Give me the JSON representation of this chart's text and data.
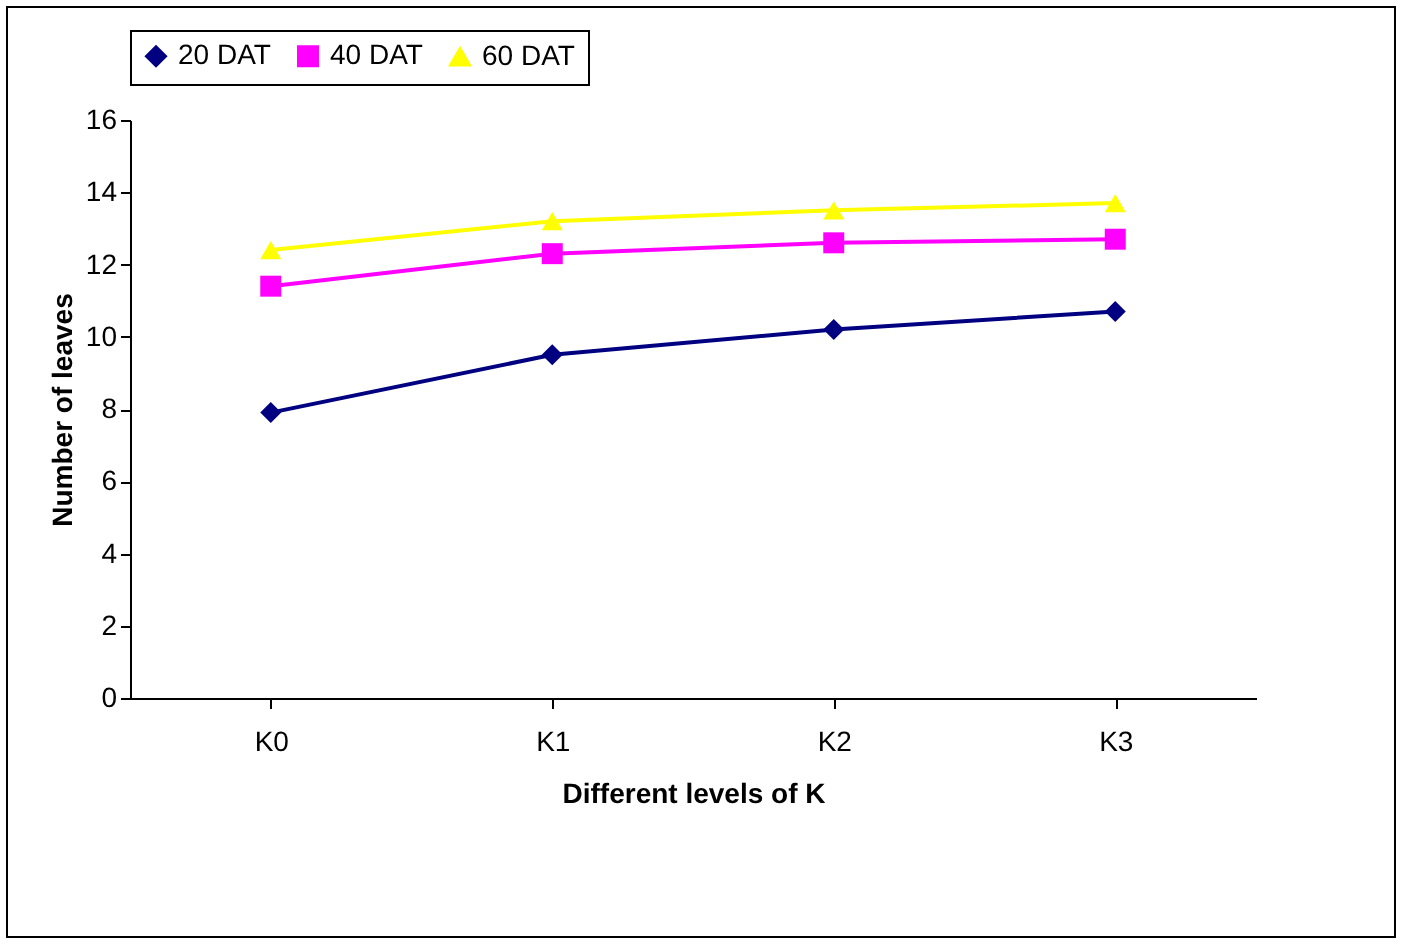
{
  "chart_data": {
    "type": "line",
    "xlabel": "Different levels of K",
    "ylabel": "Number of leaves",
    "categories": [
      "K0",
      "K1",
      "K2",
      "K3"
    ],
    "ylim": [
      0,
      16
    ],
    "yticks": [
      0,
      2,
      4,
      6,
      8,
      10,
      12,
      14,
      16
    ],
    "grid": false,
    "legend": "top",
    "series": [
      {
        "name": "20 DAT",
        "color": "#000080",
        "marker": "diamond",
        "values": [
          7.9,
          9.5,
          10.2,
          10.7
        ]
      },
      {
        "name": "40 DAT",
        "color": "#ff00ff",
        "marker": "square",
        "values": [
          11.4,
          12.3,
          12.6,
          12.7
        ]
      },
      {
        "name": "60 DAT",
        "color": "#ffff00",
        "marker": "triangle",
        "values": [
          12.4,
          13.2,
          13.5,
          13.7
        ]
      }
    ]
  }
}
